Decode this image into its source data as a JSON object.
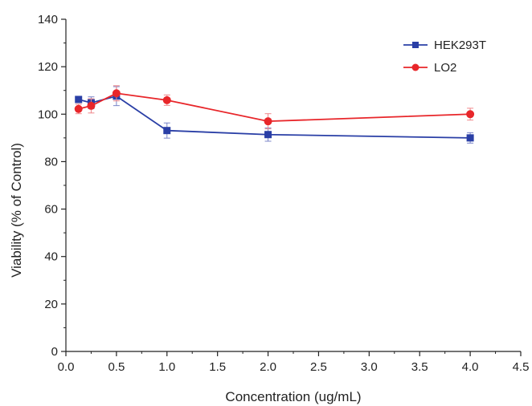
{
  "chart_data": {
    "type": "line",
    "title": "",
    "xlabel": "Concentration (ug/mL)",
    "ylabel": "Viability (% of Control)",
    "xlim": [
      0.0,
      4.5
    ],
    "ylim": [
      0,
      140
    ],
    "x_ticks": [
      "0.0",
      "0.5",
      "1.0",
      "1.5",
      "2.0",
      "2.5",
      "3.0",
      "3.5",
      "4.0",
      "4.5"
    ],
    "y_ticks": [
      "0",
      "20",
      "40",
      "60",
      "80",
      "100",
      "120",
      "140"
    ],
    "grid": false,
    "legend_position": "top-right",
    "series": [
      {
        "name": "HEK293T",
        "color": "#2a3fa6",
        "marker": "square",
        "x": [
          0.125,
          0.25,
          0.5,
          1.0,
          2.0,
          4.0
        ],
        "y": [
          106.2,
          104.8,
          107.6,
          93.1,
          91.4,
          90.0
        ],
        "error": [
          1.2,
          2.5,
          4.0,
          3.2,
          2.8,
          2.2
        ]
      },
      {
        "name": "LO2",
        "color": "#e8262a",
        "marker": "circle",
        "x": [
          0.125,
          0.25,
          0.5,
          1.0,
          2.0,
          4.0
        ],
        "y": [
          102.2,
          103.5,
          108.8,
          105.9,
          97.0,
          100.0
        ],
        "error": [
          2.0,
          3.0,
          3.2,
          2.2,
          3.2,
          2.5
        ]
      }
    ]
  }
}
